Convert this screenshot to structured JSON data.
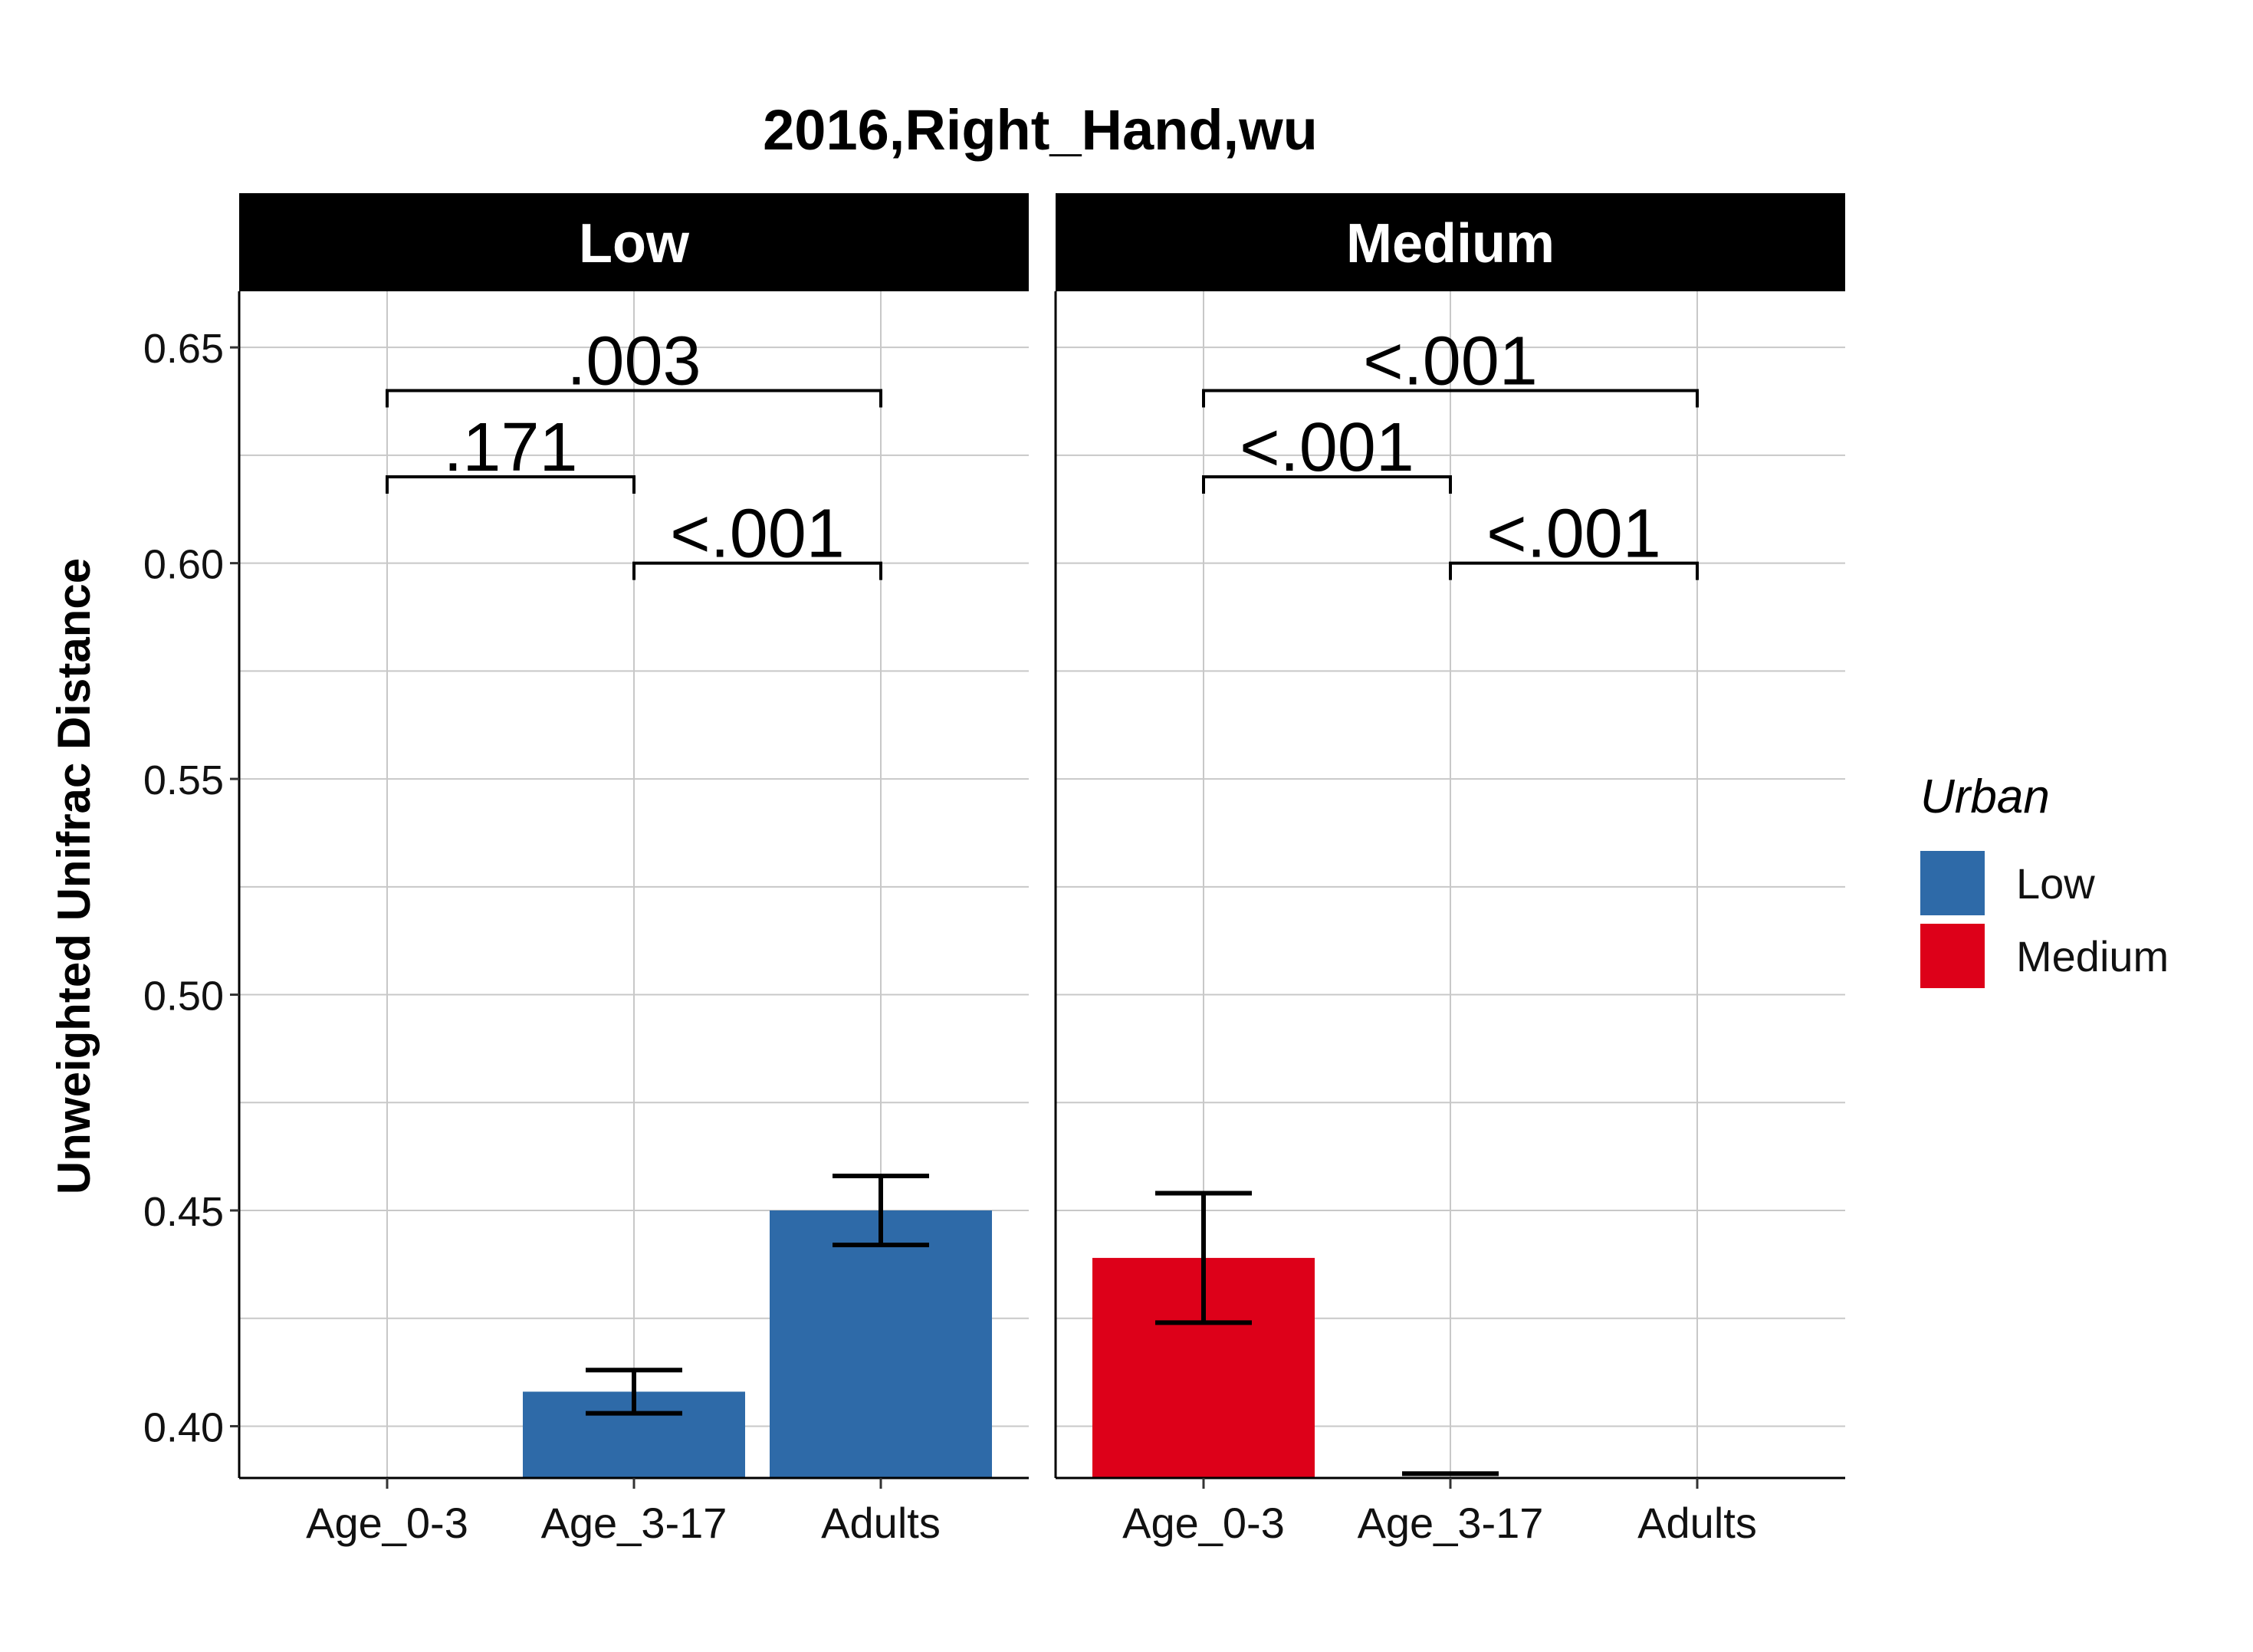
{
  "chart_data": {
    "type": "bar",
    "title": "2016,Right_Hand,wu",
    "ylabel": "Unweighted Unifrac Distance",
    "xlabel": "",
    "categories": [
      "Age_0-3",
      "Age_3-17",
      "Adults"
    ],
    "ylim": [
      0.388,
      0.663
    ],
    "yticks": [
      0.4,
      0.45,
      0.5,
      0.55,
      0.6,
      0.65
    ],
    "ytick_labels": [
      "0.40",
      "0.45",
      "0.50",
      "0.55",
      "0.60",
      "0.65"
    ],
    "grid": true,
    "legend": {
      "title": "Urban",
      "position": "right",
      "items": [
        {
          "label": "Low",
          "color": "#2e6aa8"
        },
        {
          "label": "Medium",
          "color": "#dd0019"
        }
      ]
    },
    "panels": [
      {
        "label": "Low",
        "color": "#2e6aa8",
        "bars": [
          {
            "category": "Age_0-3",
            "value": null,
            "err_low": null,
            "err_high": null
          },
          {
            "category": "Age_3-17",
            "value": 0.408,
            "err_low": 0.403,
            "err_high": 0.413
          },
          {
            "category": "Adults",
            "value": 0.45,
            "err_low": 0.442,
            "err_high": 0.458
          }
        ],
        "comparisons": [
          {
            "from": "Age_0-3",
            "to": "Adults",
            "y": 0.64,
            "label": ".003"
          },
          {
            "from": "Age_0-3",
            "to": "Age_3-17",
            "y": 0.62,
            "label": ".171"
          },
          {
            "from": "Age_3-17",
            "to": "Adults",
            "y": 0.6,
            "label": "<.001"
          }
        ]
      },
      {
        "label": "Medium",
        "color": "#dd0019",
        "bars": [
          {
            "category": "Age_0-3",
            "value": 0.439,
            "err_low": 0.424,
            "err_high": 0.454
          },
          {
            "category": "Age_3-17",
            "value": null,
            "err_low": 0.389,
            "err_high": 0.389
          },
          {
            "category": "Adults",
            "value": null,
            "err_low": null,
            "err_high": null
          }
        ],
        "comparisons": [
          {
            "from": "Age_0-3",
            "to": "Adults",
            "y": 0.64,
            "label": "<.001"
          },
          {
            "from": "Age_0-3",
            "to": "Age_3-17",
            "y": 0.62,
            "label": "<.001"
          },
          {
            "from": "Age_3-17",
            "to": "Adults",
            "y": 0.6,
            "label": "<.001"
          }
        ]
      }
    ]
  }
}
